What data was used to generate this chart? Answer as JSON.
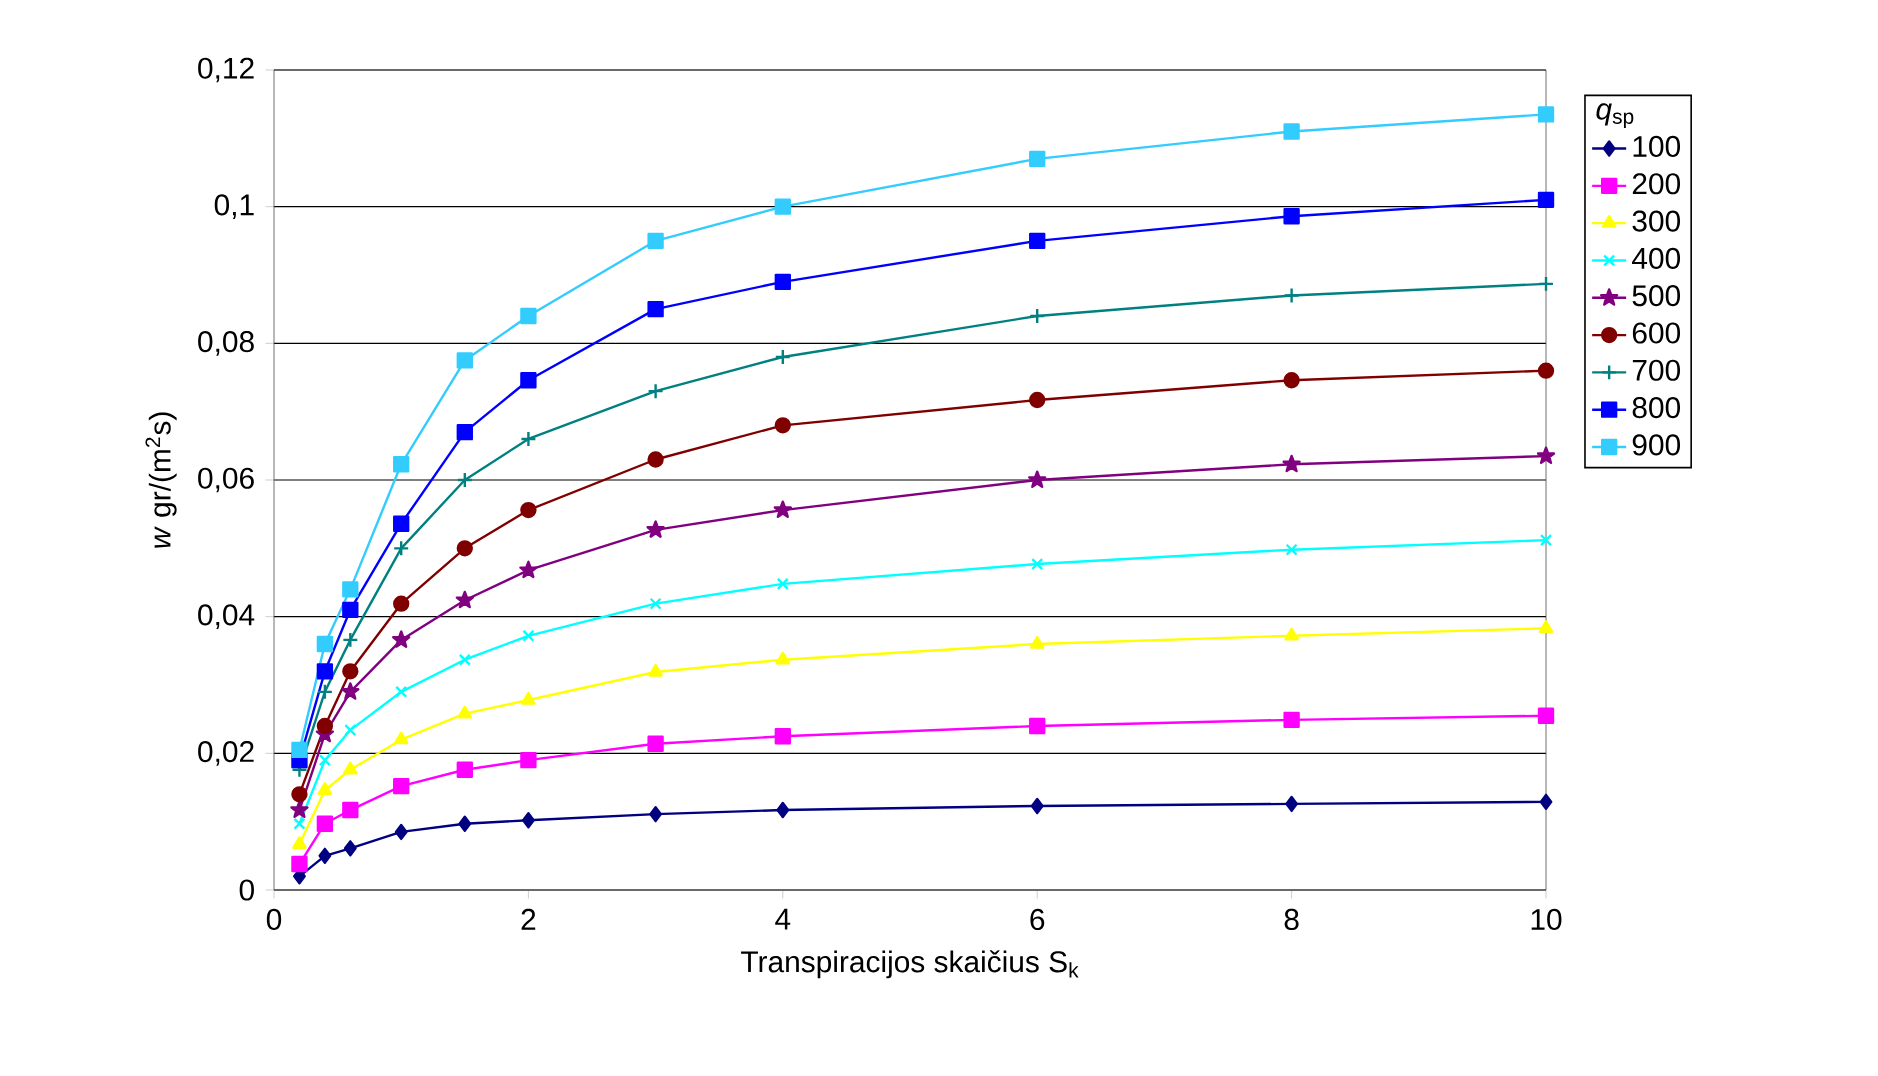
{
  "chart_data": {
    "type": "line",
    "xlabel": "Transpiracijos skaičius S$_{k}$",
    "ylabel": "*w* gr/(m$^{2}$s)",
    "legend_title": "*q*$_{sp}$",
    "x": [
      0.2,
      0.4,
      0.6,
      1,
      1.5,
      2,
      3,
      4,
      6,
      8,
      10
    ],
    "xlim": [
      0,
      10
    ],
    "ylim": [
      0,
      0.12
    ],
    "xticks": [
      0,
      2,
      4,
      6,
      8,
      10
    ],
    "yticks": [
      0,
      {
        "value": 0.02,
        "label": "0,02"
      },
      {
        "value": 0.04,
        "label": "0,04"
      },
      {
        "value": 0.06,
        "label": "0,06"
      },
      {
        "value": 0.08,
        "label": "0,08"
      },
      {
        "value": 0.1,
        "label": "0,1"
      },
      {
        "value": 0.12,
        "label": "0,12"
      }
    ],
    "grid": "y",
    "legend": "right",
    "series": [
      {
        "name": "100",
        "color": "#000080",
        "marker": "diamond",
        "values": [
          0.002,
          0.005,
          0.0061,
          0.0085,
          0.0097,
          0.0102,
          0.0111,
          0.0117,
          0.0123,
          0.0126,
          0.0129
        ]
      },
      {
        "name": "200",
        "color": "#ff00ff",
        "marker": "square",
        "values": [
          0.0038,
          0.0097,
          0.0117,
          0.0152,
          0.0176,
          0.019,
          0.0214,
          0.0225,
          0.024,
          0.0249,
          0.0255
        ]
      },
      {
        "name": "300",
        "color": "#ffff00",
        "marker": "triangle",
        "values": [
          0.0067,
          0.0146,
          0.0176,
          0.022,
          0.0258,
          0.0278,
          0.0319,
          0.0337,
          0.036,
          0.0372,
          0.0383
        ]
      },
      {
        "name": "400",
        "color": "#00ffff",
        "marker": "cross",
        "values": [
          0.0097,
          0.019,
          0.0234,
          0.029,
          0.0337,
          0.0372,
          0.0419,
          0.0448,
          0.0477,
          0.0498,
          0.0512
        ]
      },
      {
        "name": "500",
        "color": "#800080",
        "marker": "star",
        "values": [
          0.0117,
          0.0228,
          0.029,
          0.0366,
          0.0424,
          0.0468,
          0.0527,
          0.0556,
          0.06,
          0.0623,
          0.0635
        ]
      },
      {
        "name": "600",
        "color": "#800000",
        "marker": "circle",
        "values": [
          0.014,
          0.024,
          0.032,
          0.0419,
          0.05,
          0.0556,
          0.063,
          0.068,
          0.0717,
          0.0746,
          0.076
        ]
      },
      {
        "name": "700",
        "color": "#008080",
        "marker": "plus",
        "values": [
          0.0176,
          0.029,
          0.0366,
          0.05,
          0.06,
          0.066,
          0.073,
          0.078,
          0.084,
          0.087,
          0.0887
        ]
      },
      {
        "name": "800",
        "color": "#0000ff",
        "marker": "square",
        "values": [
          0.019,
          0.032,
          0.041,
          0.0536,
          0.067,
          0.0746,
          0.085,
          0.089,
          0.095,
          0.0986,
          0.101
        ]
      },
      {
        "name": "900",
        "color": "#33ccff",
        "marker": "square",
        "values": [
          0.0205,
          0.036,
          0.044,
          0.0623,
          0.0775,
          0.084,
          0.095,
          0.1,
          0.107,
          0.111,
          0.1135
        ]
      }
    ]
  }
}
